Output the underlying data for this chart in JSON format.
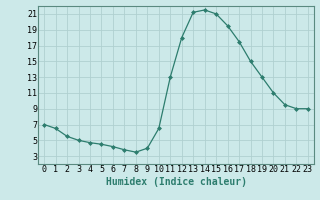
{
  "x": [
    0,
    1,
    2,
    3,
    4,
    5,
    6,
    7,
    8,
    9,
    10,
    11,
    12,
    13,
    14,
    15,
    16,
    17,
    18,
    19,
    20,
    21,
    22,
    23
  ],
  "y": [
    7.0,
    6.5,
    5.5,
    5.0,
    4.7,
    4.5,
    4.2,
    3.8,
    3.5,
    4.0,
    6.5,
    13.0,
    18.0,
    21.2,
    21.5,
    21.0,
    19.5,
    17.5,
    15.0,
    13.0,
    11.0,
    9.5,
    9.0,
    9.0
  ],
  "line_color": "#2d7d6e",
  "marker": "D",
  "marker_size": 2.0,
  "bg_color": "#cce9e9",
  "grid_color": "#b0d0d0",
  "xlabel": "Humidex (Indice chaleur)",
  "xlabel_fontsize": 7,
  "tick_fontsize": 6,
  "ylim": [
    2,
    22
  ],
  "xlim": [
    -0.5,
    23.5
  ],
  "yticks": [
    3,
    5,
    7,
    9,
    11,
    13,
    15,
    17,
    19,
    21
  ],
  "xticks": [
    0,
    1,
    2,
    3,
    4,
    5,
    6,
    7,
    8,
    9,
    10,
    11,
    12,
    13,
    14,
    15,
    16,
    17,
    18,
    19,
    20,
    21,
    22,
    23
  ],
  "spine_color": "#5a8a80"
}
